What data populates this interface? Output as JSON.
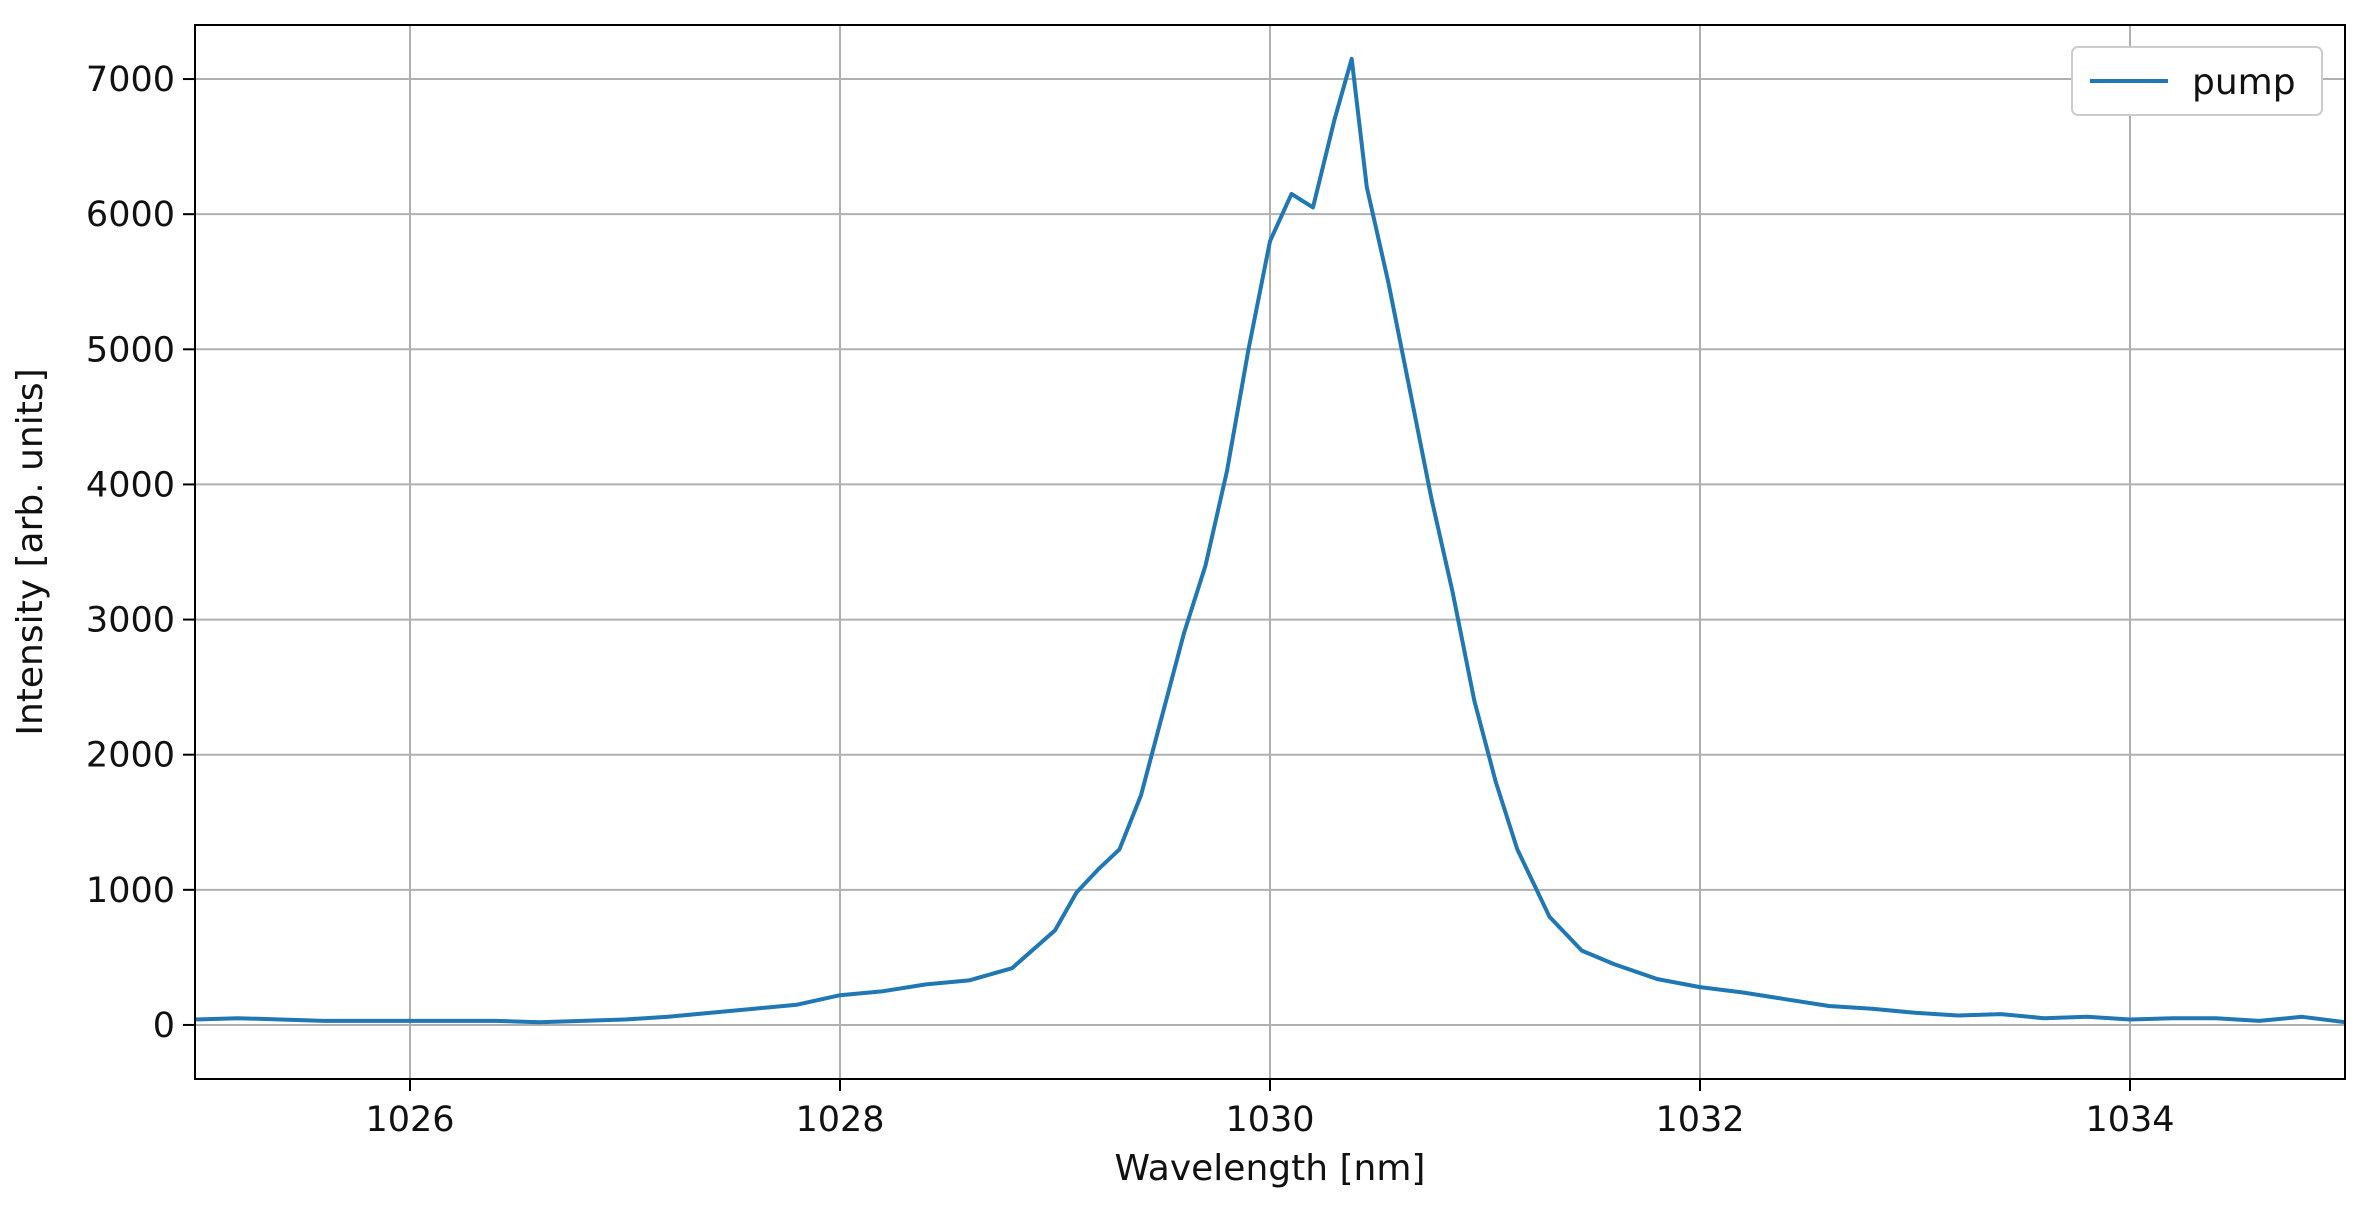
{
  "chart_data": {
    "type": "line",
    "xlabel": "Wavelength [nm]",
    "ylabel": "Intensity [arb. units]",
    "xlim": [
      1025,
      1035
    ],
    "ylim": [
      -400,
      7400
    ],
    "xticks": [
      1026,
      1028,
      1030,
      1032,
      1034
    ],
    "yticks": [
      0,
      1000,
      2000,
      3000,
      4000,
      5000,
      6000,
      7000
    ],
    "grid": true,
    "legend_position": "top-right",
    "series": [
      {
        "name": "pump",
        "color": "#1f77b4",
        "x": [
          1025.0,
          1025.2,
          1025.4,
          1025.6,
          1025.8,
          1026.0,
          1026.2,
          1026.4,
          1026.6,
          1026.8,
          1027.0,
          1027.2,
          1027.4,
          1027.6,
          1027.8,
          1028.0,
          1028.2,
          1028.4,
          1028.6,
          1028.8,
          1029.0,
          1029.1,
          1029.2,
          1029.3,
          1029.4,
          1029.5,
          1029.6,
          1029.7,
          1029.8,
          1029.9,
          1030.0,
          1030.1,
          1030.2,
          1030.3,
          1030.38,
          1030.45,
          1030.55,
          1030.65,
          1030.75,
          1030.85,
          1030.95,
          1031.05,
          1031.15,
          1031.3,
          1031.45,
          1031.6,
          1031.8,
          1032.0,
          1032.2,
          1032.4,
          1032.6,
          1032.8,
          1033.0,
          1033.2,
          1033.4,
          1033.6,
          1033.8,
          1034.0,
          1034.2,
          1034.4,
          1034.6,
          1034.8,
          1035.0
        ],
        "y": [
          40,
          50,
          40,
          30,
          30,
          30,
          30,
          30,
          20,
          30,
          40,
          60,
          90,
          120,
          150,
          220,
          250,
          300,
          330,
          420,
          700,
          980,
          1150,
          1300,
          1700,
          2300,
          2900,
          3400,
          4100,
          5000,
          5800,
          6150,
          6050,
          6700,
          7150,
          6200,
          5500,
          4700,
          3900,
          3200,
          2400,
          1800,
          1300,
          800,
          550,
          450,
          340,
          280,
          240,
          190,
          140,
          120,
          90,
          70,
          80,
          50,
          60,
          40,
          50,
          50,
          30,
          60,
          20
        ]
      }
    ]
  }
}
